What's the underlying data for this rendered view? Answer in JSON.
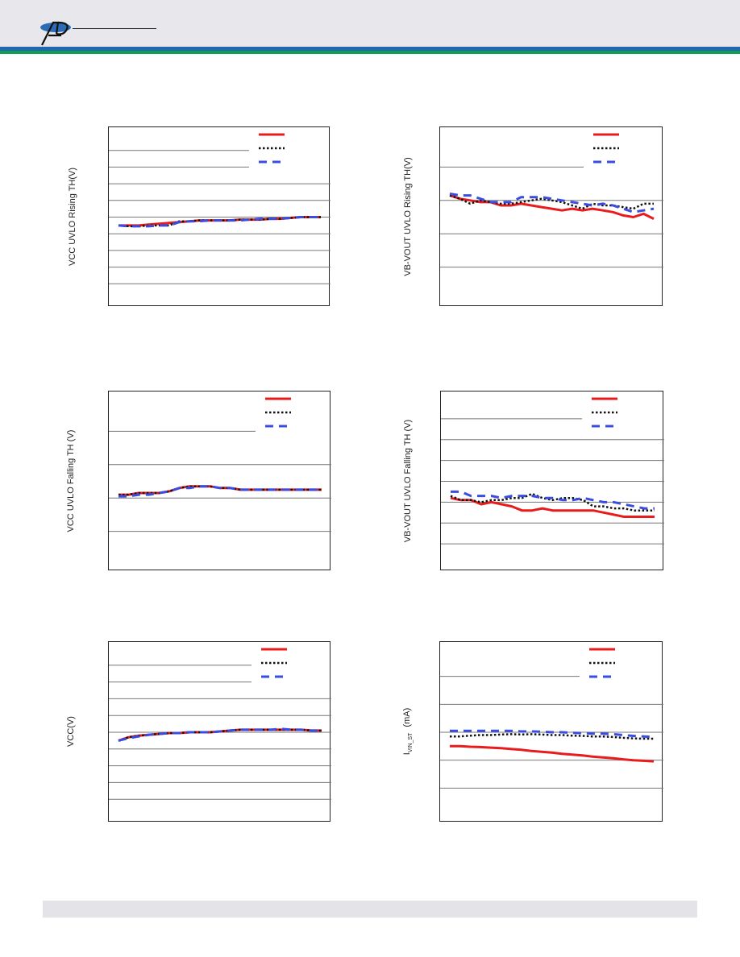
{
  "header": {
    "logo": "AP-monogram-logo"
  },
  "colors": {
    "header_bg": "#e8e8ec",
    "stripe_blue": "#2166b0",
    "stripe_green": "#149c54",
    "footer_bg": "#e4e4e8"
  },
  "series_styles": [
    {
      "color": "#e81c1c",
      "dash": "solid",
      "width": 3
    },
    {
      "color": "#111111",
      "dash": "dotted",
      "width": 2.5
    },
    {
      "color": "#3a4de0",
      "dash": "dashed",
      "width": 3
    }
  ],
  "chart_data": [
    {
      "type": "line",
      "ylabel": "VCC UVLO Rising TH(V)",
      "ylim": [
        0,
        10
      ],
      "grid": true,
      "legend": "top-right",
      "series": [
        {
          "x": [
            0,
            1,
            2,
            3,
            4,
            5,
            6,
            7,
            8,
            9,
            10,
            11,
            12,
            13,
            14,
            15,
            16,
            17,
            18,
            19,
            20
          ],
          "values": [
            4.5,
            4.5,
            4.5,
            4.55,
            4.6,
            4.65,
            4.7,
            4.75,
            4.8,
            4.8,
            4.8,
            4.8,
            4.85,
            4.85,
            4.85,
            4.9,
            4.9,
            4.95,
            5.0,
            5.0,
            5.0
          ]
        },
        {
          "x": [
            0,
            1,
            2,
            3,
            4,
            5,
            6,
            7,
            8,
            9,
            10,
            11,
            12,
            13,
            14,
            15,
            16,
            17,
            18,
            19,
            20
          ],
          "values": [
            4.5,
            4.45,
            4.45,
            4.5,
            4.5,
            4.5,
            4.75,
            4.75,
            4.8,
            4.8,
            4.8,
            4.8,
            4.85,
            4.85,
            4.85,
            4.9,
            4.9,
            4.95,
            5.0,
            5.0,
            5.0
          ]
        },
        {
          "x": [
            0,
            1,
            2,
            3,
            4,
            5,
            6,
            7,
            8,
            9,
            10,
            11,
            12,
            13,
            14,
            15,
            16,
            17,
            18,
            19,
            20
          ],
          "values": [
            4.5,
            4.45,
            4.45,
            4.45,
            4.5,
            4.5,
            4.7,
            4.75,
            4.75,
            4.8,
            4.8,
            4.8,
            4.8,
            4.85,
            4.9,
            4.9,
            4.9,
            4.95,
            5.0,
            5.0,
            5.0
          ]
        }
      ]
    },
    {
      "type": "line",
      "ylabel": "VB-VOUT UVLO Rising TH(V)",
      "ylim": [
        0,
        5
      ],
      "grid": true,
      "legend": "top-right",
      "series": [
        {
          "x": [
            0,
            1,
            2,
            3,
            4,
            5,
            6,
            7,
            8,
            9,
            10,
            11,
            12,
            13,
            14,
            15,
            16,
            17,
            18,
            19,
            20
          ],
          "values": [
            3.15,
            3.05,
            3.0,
            2.95,
            2.95,
            2.85,
            2.85,
            2.9,
            2.85,
            2.8,
            2.75,
            2.7,
            2.75,
            2.7,
            2.75,
            2.7,
            2.65,
            2.55,
            2.5,
            2.6,
            2.45
          ]
        },
        {
          "x": [
            0,
            1,
            2,
            3,
            4,
            5,
            6,
            7,
            8,
            9,
            10,
            11,
            12,
            13,
            14,
            15,
            16,
            17,
            18,
            19,
            20
          ],
          "values": [
            3.15,
            3.05,
            2.9,
            3.0,
            2.95,
            2.9,
            2.9,
            2.95,
            3.0,
            3.05,
            3.0,
            2.95,
            2.85,
            2.75,
            2.9,
            2.85,
            2.85,
            2.8,
            2.75,
            2.9,
            2.9
          ]
        },
        {
          "x": [
            0,
            1,
            2,
            3,
            4,
            5,
            6,
            7,
            8,
            9,
            10,
            11,
            12,
            13,
            14,
            15,
            16,
            17,
            18,
            19,
            20
          ],
          "values": [
            3.2,
            3.15,
            3.15,
            3.05,
            2.95,
            2.95,
            2.95,
            3.1,
            3.1,
            3.1,
            3.05,
            3.0,
            2.95,
            2.9,
            2.85,
            2.9,
            2.85,
            2.75,
            2.65,
            2.7,
            2.75
          ]
        }
      ]
    },
    {
      "type": "line",
      "ylabel": "VCC UVLO Falling TH (V)",
      "ylim": [
        0,
        5
      ],
      "grid": true,
      "legend": "top-right",
      "series": [
        {
          "x": [
            0,
            1,
            2,
            3,
            4,
            5,
            6,
            7,
            8,
            9,
            10,
            11,
            12,
            13,
            14,
            15,
            16,
            17,
            18,
            19,
            20
          ],
          "values": [
            2.1,
            2.1,
            2.15,
            2.15,
            2.15,
            2.2,
            2.3,
            2.35,
            2.35,
            2.35,
            2.3,
            2.3,
            2.25,
            2.25,
            2.25,
            2.25,
            2.25,
            2.25,
            2.25,
            2.25,
            2.25
          ]
        },
        {
          "x": [
            0,
            1,
            2,
            3,
            4,
            5,
            6,
            7,
            8,
            9,
            10,
            11,
            12,
            13,
            14,
            15,
            16,
            17,
            18,
            19,
            20
          ],
          "values": [
            2.1,
            2.1,
            2.15,
            2.15,
            2.15,
            2.2,
            2.3,
            2.35,
            2.35,
            2.35,
            2.3,
            2.3,
            2.25,
            2.25,
            2.25,
            2.25,
            2.25,
            2.25,
            2.25,
            2.25,
            2.25
          ]
        },
        {
          "x": [
            0,
            1,
            2,
            3,
            4,
            5,
            6,
            7,
            8,
            9,
            10,
            11,
            12,
            13,
            14,
            15,
            16,
            17,
            18,
            19,
            20
          ],
          "values": [
            2.05,
            2.05,
            2.1,
            2.1,
            2.15,
            2.2,
            2.3,
            2.3,
            2.35,
            2.35,
            2.3,
            2.3,
            2.25,
            2.25,
            2.25,
            2.25,
            2.25,
            2.25,
            2.25,
            2.25,
            2.25
          ]
        }
      ]
    },
    {
      "type": "line",
      "ylabel": "VB-VOUT UVLO Falling TH (V)",
      "ylim": [
        0,
        4
      ],
      "grid": true,
      "legend": "top-right",
      "series": [
        {
          "x": [
            0,
            1,
            2,
            3,
            4,
            5,
            6,
            7,
            8,
            9,
            10,
            11,
            12,
            13,
            14,
            15,
            16,
            17,
            18,
            19,
            20
          ],
          "values": [
            1.6,
            1.55,
            1.55,
            1.45,
            1.5,
            1.45,
            1.4,
            1.3,
            1.3,
            1.35,
            1.3,
            1.3,
            1.3,
            1.3,
            1.3,
            1.25,
            1.2,
            1.15,
            1.15,
            1.15,
            1.15
          ]
        },
        {
          "x": [
            0,
            1,
            2,
            3,
            4,
            5,
            6,
            7,
            8,
            9,
            10,
            11,
            12,
            13,
            14,
            15,
            16,
            17,
            18,
            19,
            20
          ],
          "values": [
            1.65,
            1.55,
            1.55,
            1.5,
            1.55,
            1.55,
            1.6,
            1.6,
            1.7,
            1.6,
            1.55,
            1.6,
            1.6,
            1.55,
            1.4,
            1.4,
            1.35,
            1.35,
            1.3,
            1.3,
            1.3
          ]
        },
        {
          "x": [
            0,
            1,
            2,
            3,
            4,
            5,
            6,
            7,
            8,
            9,
            10,
            11,
            12,
            13,
            14,
            15,
            16,
            17,
            18,
            19,
            20
          ],
          "values": [
            1.75,
            1.75,
            1.65,
            1.65,
            1.65,
            1.6,
            1.65,
            1.65,
            1.65,
            1.6,
            1.6,
            1.55,
            1.55,
            1.6,
            1.55,
            1.5,
            1.5,
            1.45,
            1.4,
            1.35,
            1.35
          ]
        }
      ]
    },
    {
      "type": "line",
      "ylabel": "VCC(V)",
      "ylim": [
        0,
        10
      ],
      "grid": true,
      "legend": "top-right",
      "series": [
        {
          "x": [
            0,
            1,
            2,
            3,
            4,
            5,
            6,
            7,
            8,
            9,
            10,
            11,
            12,
            13,
            14,
            15,
            16,
            17,
            18,
            19,
            20
          ],
          "values": [
            4.5,
            4.7,
            4.8,
            4.85,
            4.9,
            4.95,
            4.95,
            5.0,
            5.0,
            5.0,
            5.05,
            5.1,
            5.15,
            5.15,
            5.15,
            5.15,
            5.15,
            5.15,
            5.15,
            5.1,
            5.1
          ]
        },
        {
          "x": [
            0,
            1,
            2,
            3,
            4,
            5,
            6,
            7,
            8,
            9,
            10,
            11,
            12,
            13,
            14,
            15,
            16,
            17,
            18,
            19,
            20
          ],
          "values": [
            4.5,
            4.7,
            4.8,
            4.85,
            4.9,
            4.95,
            4.95,
            5.0,
            5.0,
            5.0,
            5.05,
            5.1,
            5.15,
            5.15,
            5.15,
            5.15,
            5.15,
            5.15,
            5.15,
            5.1,
            5.1
          ]
        },
        {
          "x": [
            0,
            1,
            2,
            3,
            4,
            5,
            6,
            7,
            8,
            9,
            10,
            11,
            12,
            13,
            14,
            15,
            16,
            17,
            18,
            19,
            20
          ],
          "values": [
            4.5,
            4.65,
            4.75,
            4.85,
            4.9,
            4.95,
            4.95,
            5.0,
            5.0,
            5.0,
            5.05,
            5.1,
            5.15,
            5.15,
            5.15,
            5.15,
            5.2,
            5.15,
            5.15,
            5.1,
            5.1
          ]
        }
      ]
    },
    {
      "type": "line",
      "ylabel": "I_VIN_ST (mA)",
      "ylabel_main": "I",
      "ylabel_sub": "VIN_ST",
      "ylabel_rest": "(mA)",
      "ylim": [
        0,
        6
      ],
      "grid": true,
      "legend": "top-right",
      "series": [
        {
          "x": [
            0,
            1,
            2,
            3,
            4,
            5,
            6,
            7,
            8,
            9,
            10,
            11,
            12,
            13,
            14,
            15,
            16,
            17,
            18,
            19,
            20
          ],
          "values": [
            2.5,
            2.5,
            2.48,
            2.47,
            2.45,
            2.43,
            2.4,
            2.37,
            2.33,
            2.3,
            2.27,
            2.23,
            2.2,
            2.17,
            2.13,
            2.1,
            2.07,
            2.03,
            2.0,
            1.98,
            1.96
          ]
        },
        {
          "x": [
            0,
            1,
            2,
            3,
            4,
            5,
            6,
            7,
            8,
            9,
            10,
            11,
            12,
            13,
            14,
            15,
            16,
            17,
            18,
            19,
            20
          ],
          "values": [
            2.85,
            2.85,
            2.88,
            2.9,
            2.9,
            2.92,
            2.93,
            2.92,
            2.93,
            2.92,
            2.9,
            2.9,
            2.88,
            2.87,
            2.85,
            2.85,
            2.83,
            2.8,
            2.78,
            2.77,
            2.77
          ]
        },
        {
          "x": [
            0,
            1,
            2,
            3,
            4,
            5,
            6,
            7,
            8,
            9,
            10,
            11,
            12,
            13,
            14,
            15,
            16,
            17,
            18,
            19,
            20
          ],
          "values": [
            3.05,
            3.05,
            3.05,
            3.05,
            3.05,
            3.05,
            3.05,
            3.03,
            3.03,
            3.02,
            3.0,
            3.0,
            2.98,
            2.97,
            2.95,
            2.95,
            2.93,
            2.9,
            2.87,
            2.85,
            2.83
          ]
        }
      ]
    }
  ]
}
